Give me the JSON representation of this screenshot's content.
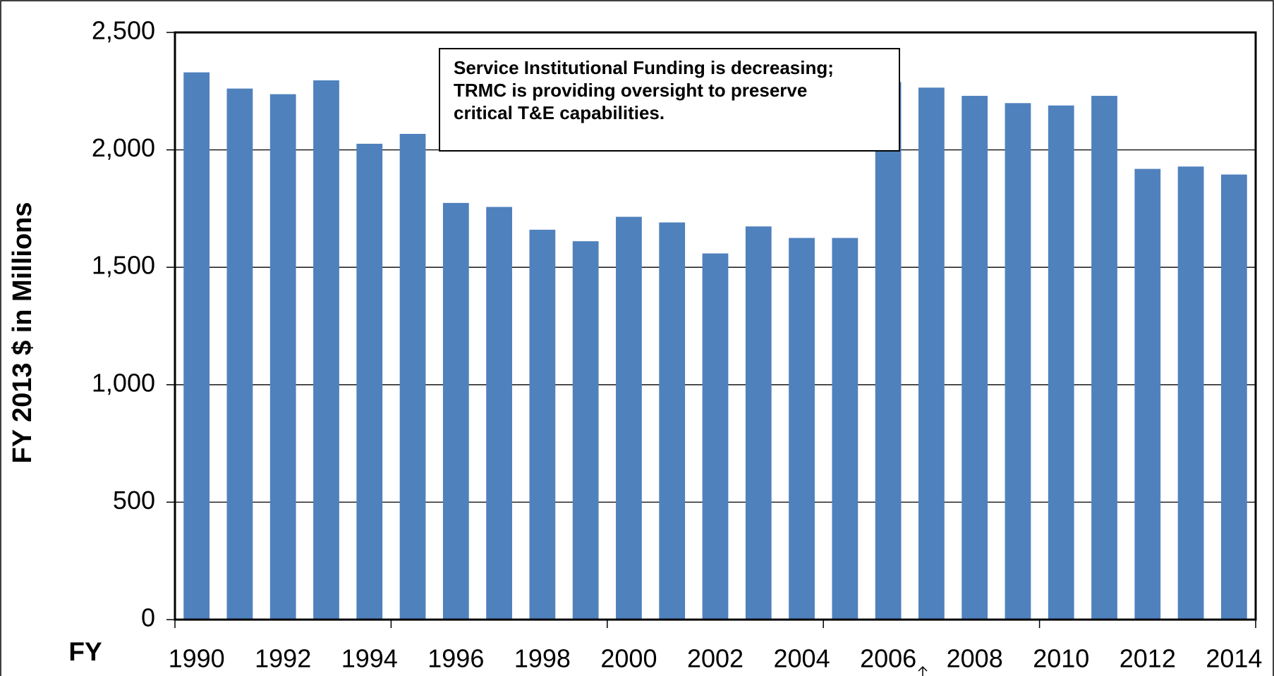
{
  "chart_data": {
    "type": "bar",
    "y_label": "FY 2013 $ in Millions",
    "x_label": "FY",
    "annotation": [
      "Service Institutional Funding is decreasing;",
      "TRMC is providing oversight to preserve",
      "critical T&E capabilities."
    ],
    "categories": [
      "1990",
      null,
      "1992",
      null,
      "1994",
      null,
      "1996",
      null,
      "1998",
      null,
      "2000",
      null,
      "2002",
      null,
      "2004",
      null,
      "2006",
      null,
      "2008",
      null,
      "2010",
      null,
      "2012",
      null,
      "2014"
    ],
    "values": [
      2330,
      2261,
      2237,
      2296,
      2026,
      2068,
      1774,
      1757,
      1660,
      1611,
      1715,
      1691,
      1559,
      1674,
      1625,
      1625,
      2289,
      2265,
      2230,
      2199,
      2189,
      2230,
      1919,
      1929,
      1895
    ],
    "color": "#4f81bd",
    "ylim": [
      0,
      2500
    ],
    "yticks": [
      0,
      500,
      {
        "value": 1000,
        "label": "1,000"
      },
      {
        "value": 1500,
        "label": "1,500"
      },
      {
        "value": 2000,
        "label": "2,000"
      },
      {
        "value": 2500,
        "label": "2,500"
      }
    ],
    "grid": true
  }
}
